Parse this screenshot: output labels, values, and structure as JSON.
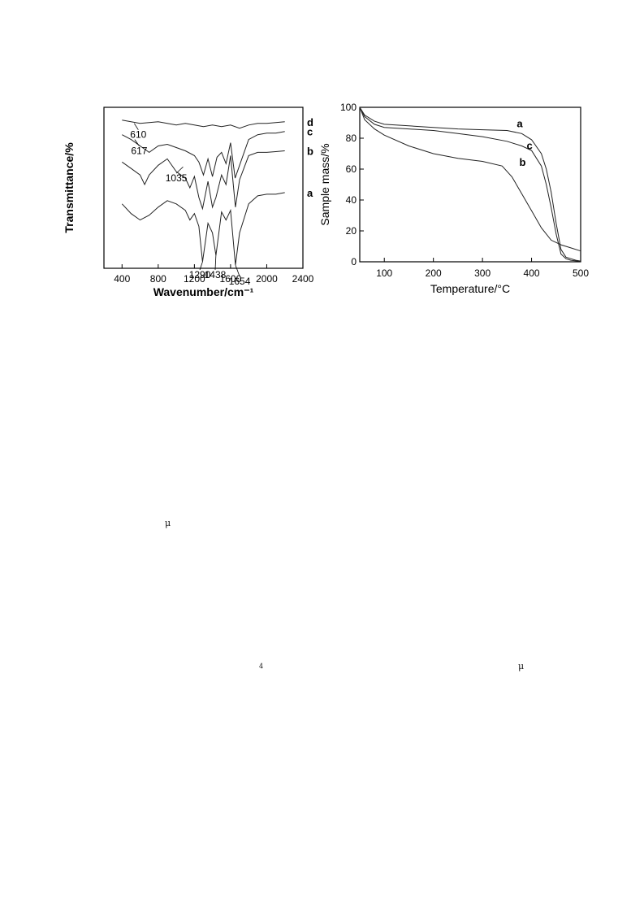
{
  "chart_data": [
    {
      "type": "line",
      "xlabel": "Wavenumber/cm⁻¹",
      "ylabel": "Transmittance/%",
      "xlim": [
        200,
        2400
      ],
      "xticks": [
        400,
        800,
        1200,
        1600,
        2000,
        2400
      ],
      "yticks_shown": false,
      "legend": "right-end labels",
      "series": [
        {
          "name": "d",
          "x": [
            400,
            500,
            600,
            700,
            800,
            900,
            1000,
            1100,
            1200,
            1300,
            1400,
            1500,
            1600,
            1700,
            1800,
            1900,
            2000,
            2100,
            2200
          ],
          "y": [
            92,
            91,
            90,
            90.5,
            91,
            90,
            89,
            90,
            89,
            88,
            89,
            88,
            89,
            87,
            89,
            90,
            90,
            90.5,
            91
          ]
        },
        {
          "name": "c",
          "x": [
            400,
            500,
            600,
            700,
            800,
            900,
            1000,
            1100,
            1200,
            1250,
            1300,
            1350,
            1400,
            1450,
            1500,
            1550,
            1600,
            1650,
            1700,
            1800,
            1900,
            2000,
            2100,
            2200
          ],
          "y": [
            83,
            80,
            76,
            72,
            76,
            77,
            75,
            73,
            70,
            66,
            58,
            68,
            57,
            69,
            72,
            65,
            78,
            56,
            64,
            80,
            83,
            84,
            84,
            85
          ]
        },
        {
          "name": "b",
          "x": [
            400,
            500,
            600,
            650,
            700,
            800,
            900,
            1000,
            1100,
            1150,
            1200,
            1250,
            1290,
            1350,
            1400,
            1438,
            1500,
            1550,
            1600,
            1654,
            1700,
            1800,
            1900,
            2000,
            2100,
            2200
          ],
          "y": [
            66,
            62,
            58,
            52,
            58,
            64,
            68,
            60,
            56,
            50,
            57,
            44,
            37,
            54,
            38,
            44,
            58,
            52,
            70,
            38,
            55,
            70,
            72,
            72,
            72.5,
            73
          ]
        },
        {
          "name": "a",
          "x": [
            400,
            500,
            600,
            700,
            800,
            900,
            1000,
            1100,
            1150,
            1200,
            1250,
            1290,
            1350,
            1400,
            1438,
            1500,
            1550,
            1600,
            1654,
            1700,
            1800,
            1900,
            2000,
            2100,
            2200
          ],
          "y": [
            40,
            34,
            30,
            33,
            38,
            42,
            40,
            36,
            30,
            34,
            26,
            4,
            28,
            22,
            8,
            35,
            30,
            36,
            2,
            22,
            40,
            45,
            46,
            46,
            47
          ]
        }
      ],
      "annotations": [
        "610",
        "617",
        "1035",
        "1290",
        "1438",
        "1654"
      ]
    },
    {
      "type": "line",
      "xlabel": "Temperature/°C",
      "ylabel": "Sample mass/%",
      "xlim": [
        50,
        500
      ],
      "ylim": [
        0,
        100
      ],
      "xticks": [
        100,
        200,
        300,
        400,
        500
      ],
      "yticks": [
        0,
        20,
        40,
        60,
        80,
        100
      ],
      "legend": "inline labels",
      "series": [
        {
          "name": "a",
          "x": [
            50,
            60,
            80,
            100,
            150,
            200,
            250,
            300,
            350,
            380,
            400,
            420,
            430,
            440,
            450,
            460,
            470,
            480,
            490,
            500
          ],
          "y": [
            100,
            95,
            91,
            89,
            88,
            87,
            86,
            85.5,
            85,
            83,
            79,
            70,
            60,
            45,
            25,
            8,
            3,
            2,
            1,
            0.5
          ]
        },
        {
          "name": "b",
          "x": [
            50,
            60,
            80,
            100,
            150,
            200,
            250,
            300,
            340,
            360,
            380,
            400,
            420,
            440,
            460,
            480,
            500
          ],
          "y": [
            100,
            92,
            86,
            82,
            75,
            70,
            67,
            65,
            62,
            55,
            44,
            33,
            22,
            14,
            11,
            9,
            7
          ]
        },
        {
          "name": "c",
          "x": [
            50,
            60,
            80,
            100,
            150,
            200,
            250,
            300,
            350,
            380,
            400,
            420,
            430,
            440,
            450,
            460,
            470,
            480,
            490,
            500
          ],
          "y": [
            100,
            94,
            89,
            87,
            86,
            85,
            83,
            81,
            78,
            75,
            72,
            62,
            50,
            35,
            18,
            5,
            2,
            1,
            0.6,
            0.3
          ]
        }
      ]
    }
  ],
  "stray_glyphs": {
    "mu1": "μ",
    "four": "4",
    "mu2": "μ"
  }
}
